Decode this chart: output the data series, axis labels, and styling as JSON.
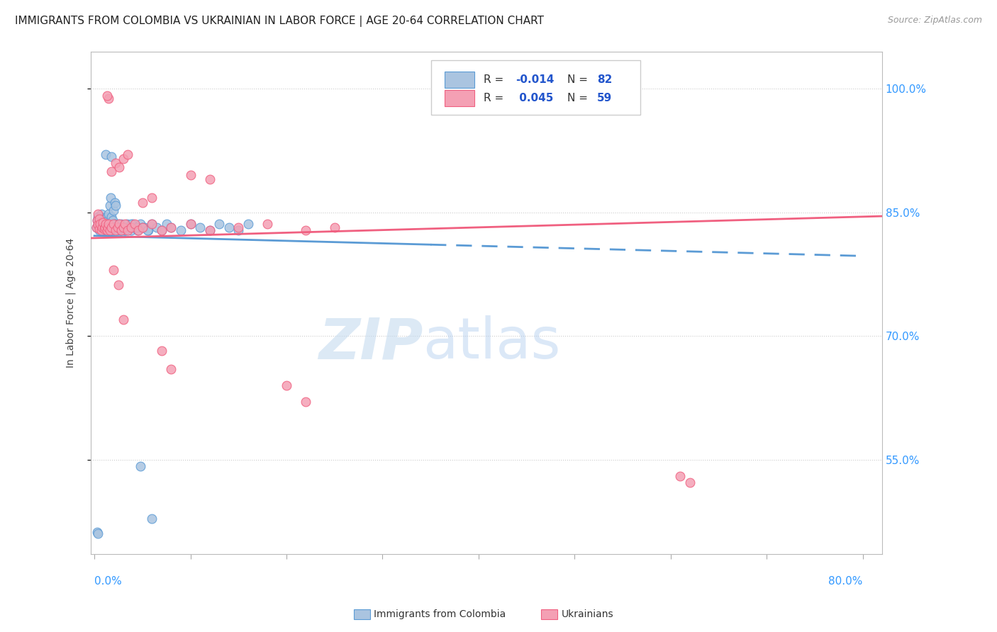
{
  "title": "IMMIGRANTS FROM COLOMBIA VS UKRAINIAN IN LABOR FORCE | AGE 20-64 CORRELATION CHART",
  "source": "Source: ZipAtlas.com",
  "ylabel": "In Labor Force | Age 20-64",
  "yticks": [
    0.55,
    0.7,
    0.85,
    1.0
  ],
  "ytick_labels": [
    "55.0%",
    "70.0%",
    "85.0%",
    "100.0%"
  ],
  "ymin": 0.435,
  "ymax": 1.045,
  "xmin": -0.004,
  "xmax": 0.82,
  "colombia_color": "#aac4e0",
  "ukraine_color": "#f4a0b4",
  "colombia_line_color": "#5b9bd5",
  "ukraine_line_color": "#f06080",
  "legend_R_color": "#2255cc",
  "background_color": "#ffffff",
  "watermark": "ZIPatlas",
  "colombia_x": [
    0.002,
    0.003,
    0.004,
    0.004,
    0.005,
    0.005,
    0.006,
    0.006,
    0.007,
    0.007,
    0.008,
    0.008,
    0.009,
    0.009,
    0.01,
    0.01,
    0.011,
    0.011,
    0.012,
    0.012,
    0.013,
    0.013,
    0.014,
    0.014,
    0.015,
    0.015,
    0.016,
    0.016,
    0.017,
    0.017,
    0.018,
    0.018,
    0.019,
    0.019,
    0.02,
    0.02,
    0.021,
    0.021,
    0.022,
    0.022,
    0.023,
    0.024,
    0.025,
    0.026,
    0.027,
    0.028,
    0.03,
    0.032,
    0.034,
    0.036,
    0.038,
    0.04,
    0.042,
    0.045,
    0.048,
    0.052,
    0.056,
    0.06,
    0.065,
    0.07,
    0.075,
    0.08,
    0.09,
    0.1,
    0.11,
    0.12,
    0.13,
    0.14,
    0.15,
    0.16,
    0.048,
    0.06,
    0.05,
    0.055,
    0.012,
    0.018,
    0.025,
    0.032,
    0.038,
    0.044,
    0.003,
    0.004
  ],
  "colombia_y": [
    0.832,
    0.84,
    0.835,
    0.845,
    0.828,
    0.838,
    0.83,
    0.842,
    0.835,
    0.848,
    0.832,
    0.84,
    0.828,
    0.836,
    0.832,
    0.844,
    0.83,
    0.842,
    0.828,
    0.838,
    0.832,
    0.845,
    0.828,
    0.84,
    0.835,
    0.848,
    0.832,
    0.858,
    0.836,
    0.868,
    0.83,
    0.845,
    0.828,
    0.84,
    0.832,
    0.852,
    0.836,
    0.862,
    0.83,
    0.858,
    0.832,
    0.828,
    0.836,
    0.832,
    0.828,
    0.836,
    0.832,
    0.828,
    0.836,
    0.832,
    0.828,
    0.836,
    0.832,
    0.828,
    0.836,
    0.832,
    0.828,
    0.836,
    0.832,
    0.828,
    0.836,
    0.832,
    0.828,
    0.836,
    0.832,
    0.828,
    0.836,
    0.832,
    0.828,
    0.836,
    0.542,
    0.478,
    0.832,
    0.828,
    0.92,
    0.918,
    0.832,
    0.828,
    0.836,
    0.832,
    0.462,
    0.46
  ],
  "ukraine_x": [
    0.002,
    0.003,
    0.004,
    0.004,
    0.005,
    0.005,
    0.006,
    0.007,
    0.008,
    0.009,
    0.01,
    0.011,
    0.012,
    0.013,
    0.014,
    0.015,
    0.016,
    0.018,
    0.02,
    0.022,
    0.024,
    0.026,
    0.028,
    0.03,
    0.032,
    0.035,
    0.038,
    0.042,
    0.046,
    0.05,
    0.06,
    0.07,
    0.08,
    0.1,
    0.12,
    0.15,
    0.18,
    0.22,
    0.25,
    0.018,
    0.022,
    0.026,
    0.03,
    0.035,
    0.05,
    0.06,
    0.1,
    0.12,
    0.02,
    0.025,
    0.03,
    0.2,
    0.22,
    0.07,
    0.08,
    0.61,
    0.62,
    0.015,
    0.013
  ],
  "ukraine_y": [
    0.832,
    0.84,
    0.835,
    0.848,
    0.83,
    0.842,
    0.836,
    0.828,
    0.832,
    0.838,
    0.83,
    0.832,
    0.836,
    0.828,
    0.832,
    0.836,
    0.828,
    0.832,
    0.836,
    0.828,
    0.832,
    0.836,
    0.828,
    0.832,
    0.836,
    0.828,
    0.832,
    0.836,
    0.828,
    0.832,
    0.836,
    0.828,
    0.832,
    0.836,
    0.828,
    0.832,
    0.836,
    0.828,
    0.832,
    0.9,
    0.91,
    0.905,
    0.915,
    0.92,
    0.862,
    0.868,
    0.895,
    0.89,
    0.78,
    0.762,
    0.72,
    0.64,
    0.62,
    0.682,
    0.66,
    0.53,
    0.522,
    0.988,
    0.992
  ]
}
